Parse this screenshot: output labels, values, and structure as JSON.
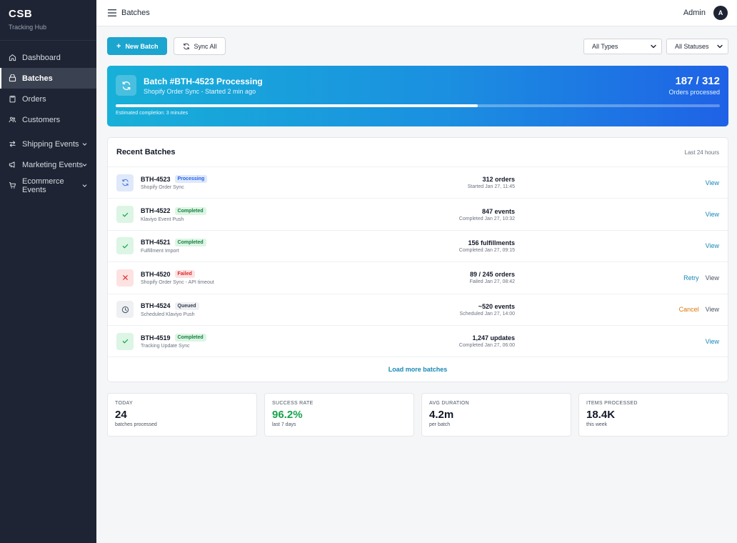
{
  "brand": {
    "title": "CSB",
    "subtitle": "Tracking Hub"
  },
  "sidebar": {
    "items": [
      {
        "label": "Dashboard",
        "icon": "home-icon",
        "active": false,
        "expandable": false
      },
      {
        "label": "Batches",
        "icon": "layers-icon",
        "active": true,
        "expandable": false
      },
      {
        "label": "Orders",
        "icon": "clipboard-icon",
        "active": false,
        "expandable": false
      },
      {
        "label": "Customers",
        "icon": "users-icon",
        "active": false,
        "expandable": false
      },
      {
        "label": "Shipping Events",
        "icon": "arrows-icon",
        "active": false,
        "expandable": true
      },
      {
        "label": "Marketing Events",
        "icon": "megaphone-icon",
        "active": false,
        "expandable": true
      },
      {
        "label": "Ecommerce Events",
        "icon": "cart-icon",
        "active": false,
        "expandable": true
      }
    ]
  },
  "topbar": {
    "title": "Batches",
    "user": "Admin",
    "avatar_initial": "A"
  },
  "toolbar": {
    "new_batch": "New Batch",
    "new_batch_icon": "+",
    "sync_all": "Sync All",
    "type_filter": "All Types",
    "status_filter": "All Statuses"
  },
  "banner": {
    "title": "Batch #BTH-4523 Processing",
    "subtitle": "Shopify Order Sync - Started 2 min ago",
    "count": "187 / 312",
    "count_label": "Orders processed",
    "progress": 0.5994,
    "eta": "Estimated completion: 3 minutes"
  },
  "recent": {
    "title": "Recent Batches",
    "range": "Last 24 hours",
    "load_more": "Load more batches",
    "rows": [
      {
        "id": "BTH-4523",
        "status": "Processing",
        "desc": "Shopify Order Sync",
        "metric": "312 orders",
        "time": "Started Jan 27, 11:45",
        "actions": [
          "View"
        ]
      },
      {
        "id": "BTH-4522",
        "status": "Completed",
        "desc": "Klaviyo Event Push",
        "metric": "847 events",
        "time": "Completed Jan 27, 10:32",
        "actions": [
          "View"
        ]
      },
      {
        "id": "BTH-4521",
        "status": "Completed",
        "desc": "Fulfillment Import",
        "metric": "156 fulfillments",
        "time": "Completed Jan 27, 09:15",
        "actions": [
          "View"
        ]
      },
      {
        "id": "BTH-4520",
        "status": "Failed",
        "desc": "Shopify Order Sync - API timeout",
        "metric": "89 / 245 orders",
        "time": "Failed Jan 27, 08:42",
        "actions": [
          "Retry",
          "View"
        ]
      },
      {
        "id": "BTH-4524",
        "status": "Queued",
        "desc": "Scheduled Klaviyo Push",
        "metric": "~520 events",
        "time": "Scheduled Jan 27, 14:00",
        "actions": [
          "Cancel",
          "View"
        ]
      },
      {
        "id": "BTH-4519",
        "status": "Completed",
        "desc": "Tracking Update Sync",
        "metric": "1,247 updates",
        "time": "Completed Jan 27, 06:00",
        "actions": [
          "View"
        ]
      }
    ]
  },
  "stats": [
    {
      "label": "TODAY",
      "value": "24",
      "sub": "batches processed",
      "highlight": false
    },
    {
      "label": "SUCCESS RATE",
      "value": "96.2%",
      "sub": "last 7 days",
      "highlight": true
    },
    {
      "label": "AVG DURATION",
      "value": "4.2m",
      "sub": "per batch",
      "highlight": false
    },
    {
      "label": "ITEMS PROCESSED",
      "value": "18.4K",
      "sub": "this week",
      "highlight": false
    }
  ],
  "colors": {
    "sidebar_bg": "#1e2433",
    "accent": "#1ba5cf",
    "banner_start": "#17b0d8",
    "banner_end": "#1f62e6",
    "success": "#16a34a",
    "danger": "#dc2626",
    "warning": "#d97706"
  }
}
